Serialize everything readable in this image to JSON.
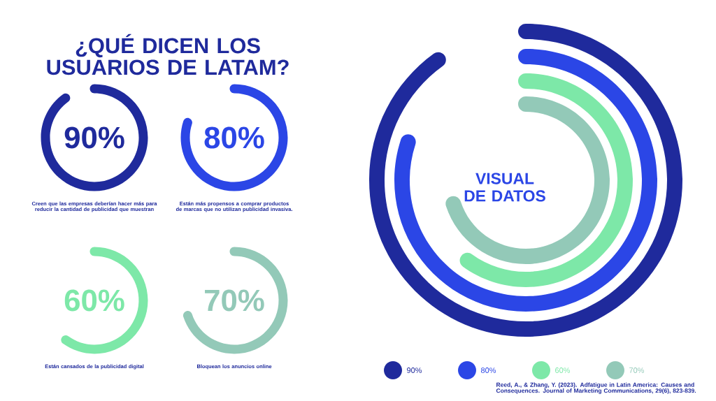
{
  "chart_data": [
    {
      "type": "other",
      "title": "¿QUÉ DICEN LOS USUARIOS DE LATAM?"
    },
    {
      "type": "other",
      "categories": [
        null
      ],
      "values": [
        90
      ],
      "colors": [
        "#1f2a9c"
      ],
      "value_labels": [
        "90%"
      ],
      "annotations": [
        "Creen que las empresas deberían hacer más para reducir la cantidad de publicidad que muestran"
      ]
    },
    {
      "type": "other",
      "categories": [
        null
      ],
      "values": [
        80
      ],
      "colors": [
        "#2b46e6"
      ],
      "value_labels": [
        "80%"
      ],
      "annotations": [
        "Están más propensos a comprar productos de marcas que no utilizan publicidad invasiva."
      ]
    },
    {
      "type": "other",
      "categories": [
        null
      ],
      "values": [
        60
      ],
      "colors": [
        "#7de8a8"
      ],
      "value_labels": [
        "60%"
      ],
      "annotations": [
        "Están cansados de la publicidad digital"
      ]
    },
    {
      "type": "other",
      "categories": [
        null
      ],
      "values": [
        70
      ],
      "colors": [
        "#93c9b8"
      ],
      "value_labels": [
        "70%"
      ],
      "annotations": [
        "Bloquean los anuncios online"
      ]
    },
    {
      "type": "other",
      "title": "VISUAL DE DATOS",
      "categories": [
        null,
        null,
        null,
        null
      ],
      "value_labels": [
        "90%",
        "80%",
        "60%",
        "70%"
      ],
      "values": [
        90,
        80,
        60,
        70
      ],
      "colors": [
        "#1f2a9c",
        "#2b46e6",
        "#7de8a8",
        "#93c9b8"
      ],
      "annotations": [
        "Reed, A., & Zhang, Y. (2023). Adfatigue in Latin America: Causes and Consequences. Journal of Marketing Communications, 29(6), 823-839."
      ]
    }
  ]
}
